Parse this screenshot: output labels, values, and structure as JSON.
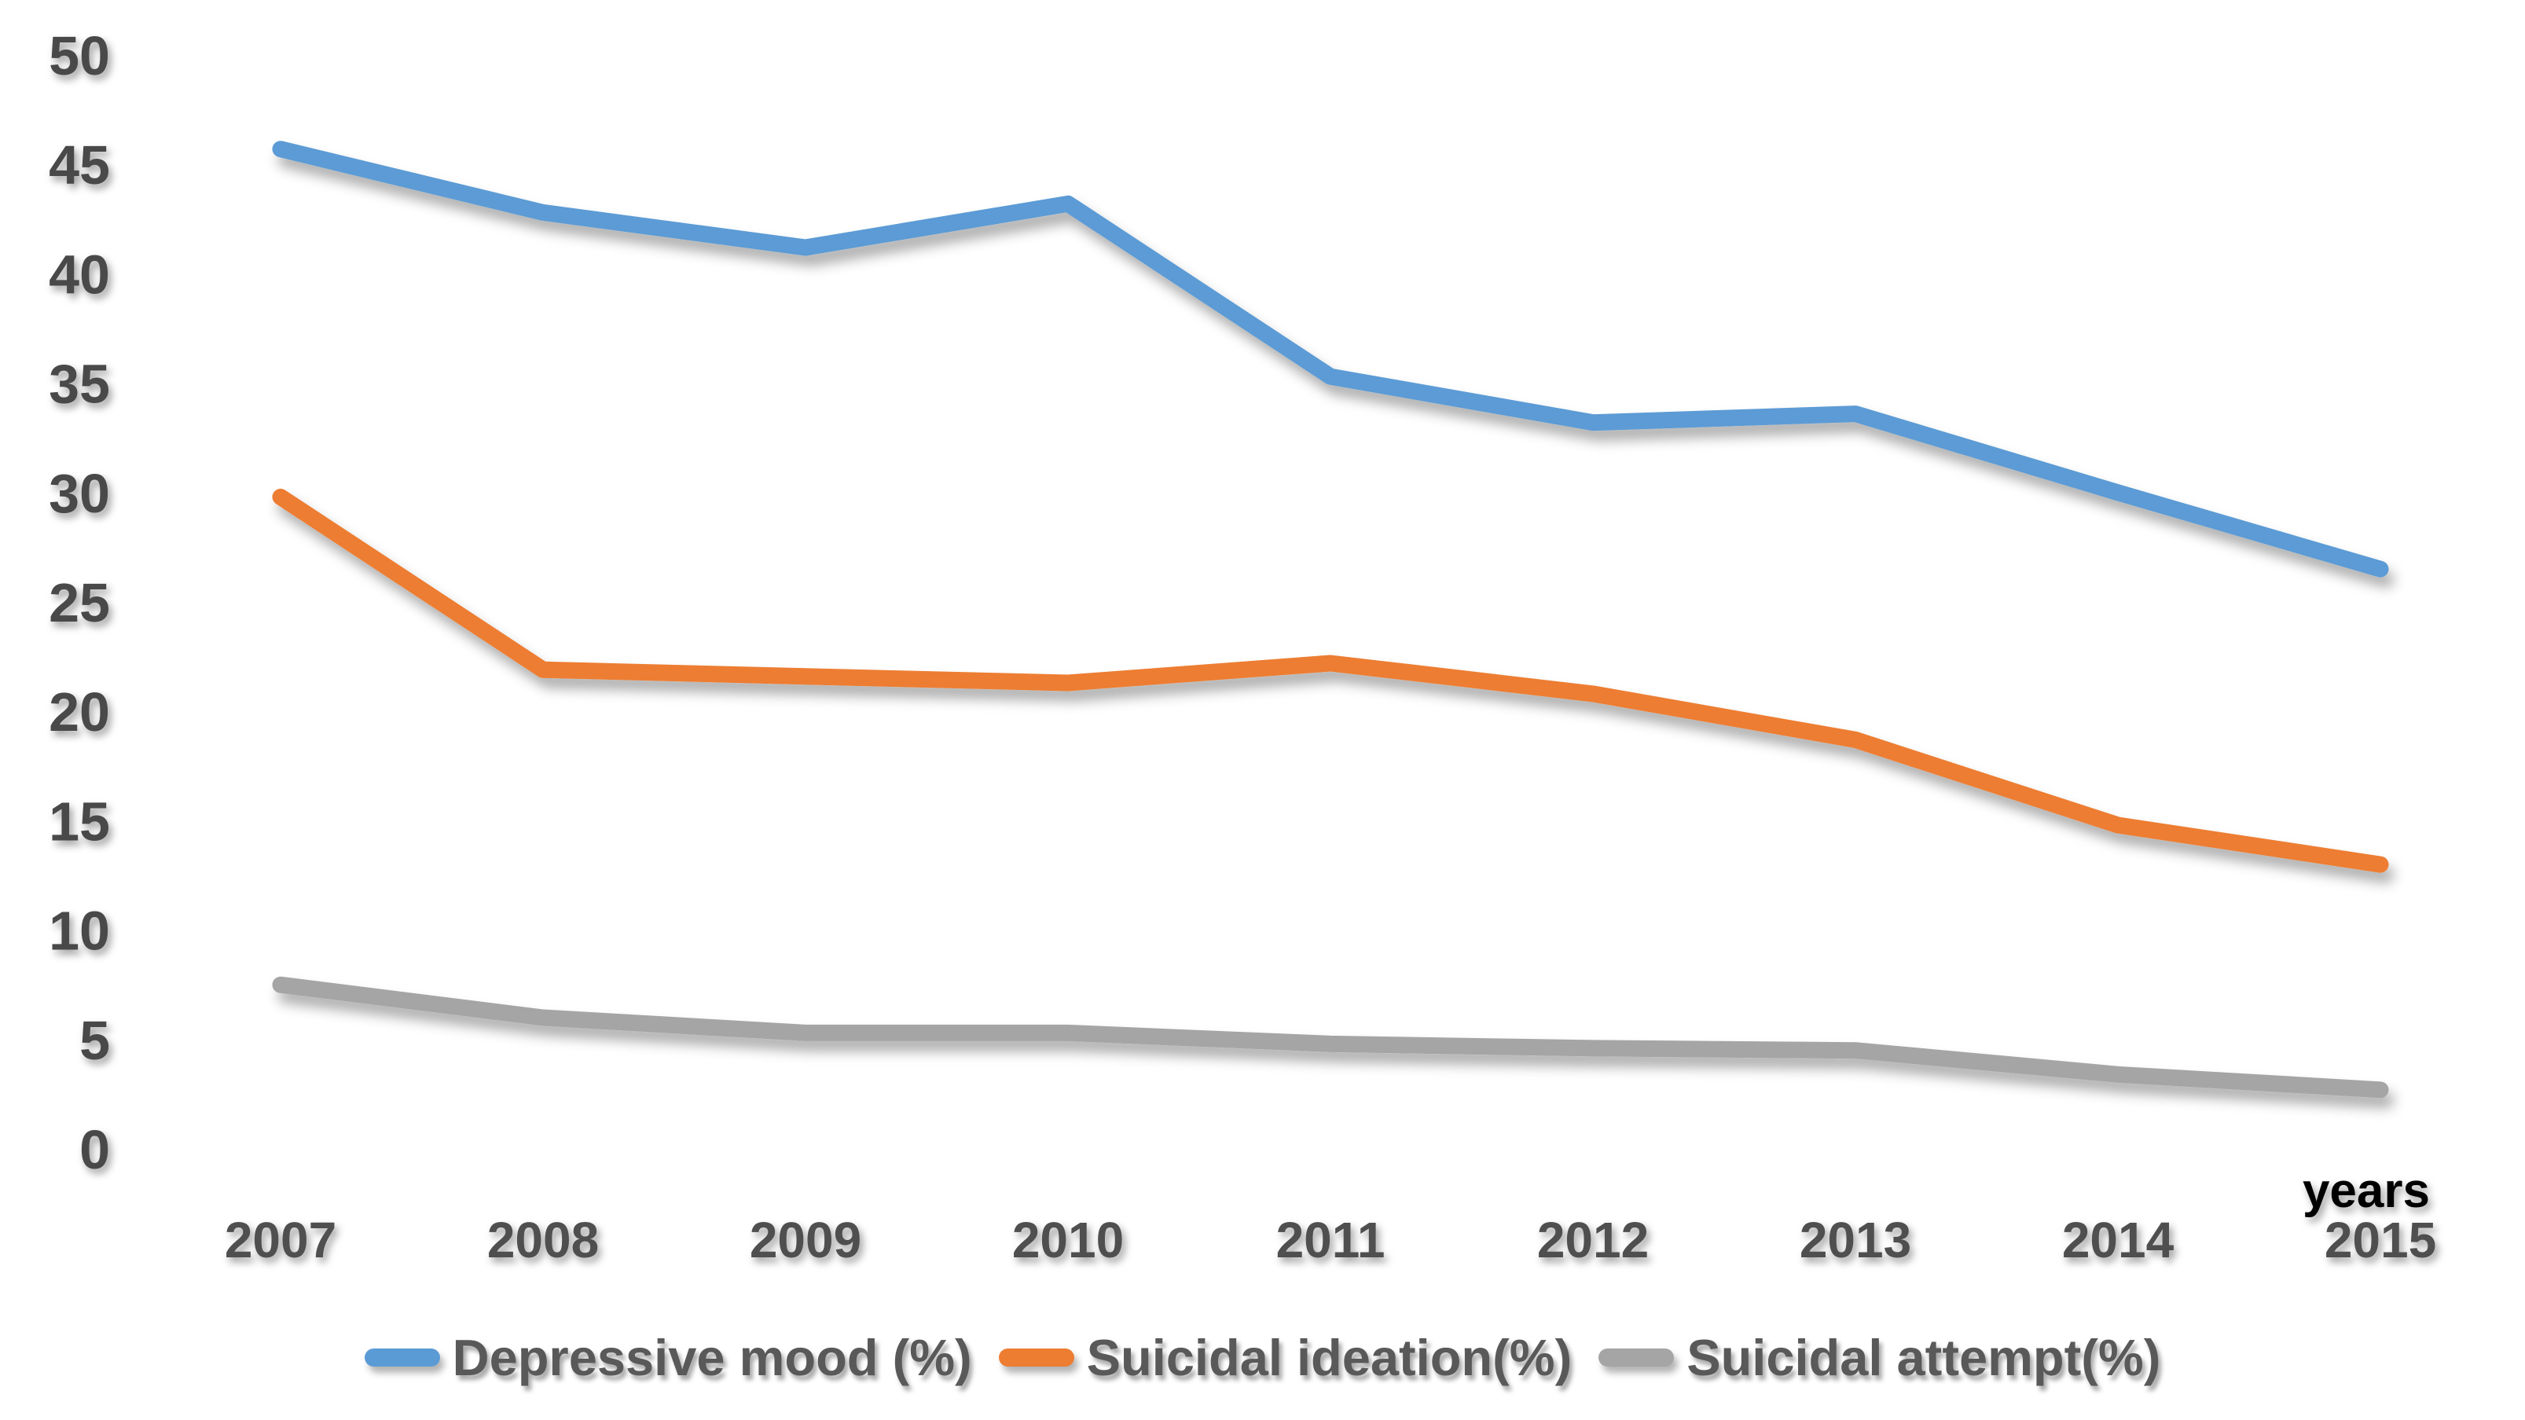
{
  "chart_data": {
    "type": "line",
    "title": "",
    "categories": [
      "2007",
      "2008",
      "2009",
      "2010",
      "2011",
      "2012",
      "2013",
      "2014",
      "2015"
    ],
    "series": [
      {
        "name": "Depressive mood (%)",
        "color": "#5B9BD5",
        "values": [
          45.7,
          42.8,
          41.2,
          43.2,
          35.3,
          33.2,
          33.6,
          30.0,
          26.5
        ]
      },
      {
        "name": "Suicidal ideation(%)",
        "color": "#ED7D31",
        "values": [
          29.8,
          21.9,
          21.6,
          21.3,
          22.2,
          20.8,
          18.7,
          14.8,
          13.0
        ]
      },
      {
        "name": "Suicidal attempt(%)",
        "color": "#A5A5A5",
        "values": [
          7.5,
          6.0,
          5.3,
          5.3,
          4.8,
          4.6,
          4.5,
          3.4,
          2.7
        ]
      }
    ],
    "xlabel": "years",
    "ylabel": "",
    "ylim": [
      0,
      50
    ],
    "y_ticks": [
      0,
      5,
      10,
      15,
      20,
      25,
      30,
      35,
      40,
      45,
      50
    ],
    "grid": false,
    "legend_position": "bottom",
    "axis_color": "#000000",
    "tick_label_color": "#4a4a4a",
    "legend_text_color": "#595959",
    "background": "#ffffff"
  }
}
